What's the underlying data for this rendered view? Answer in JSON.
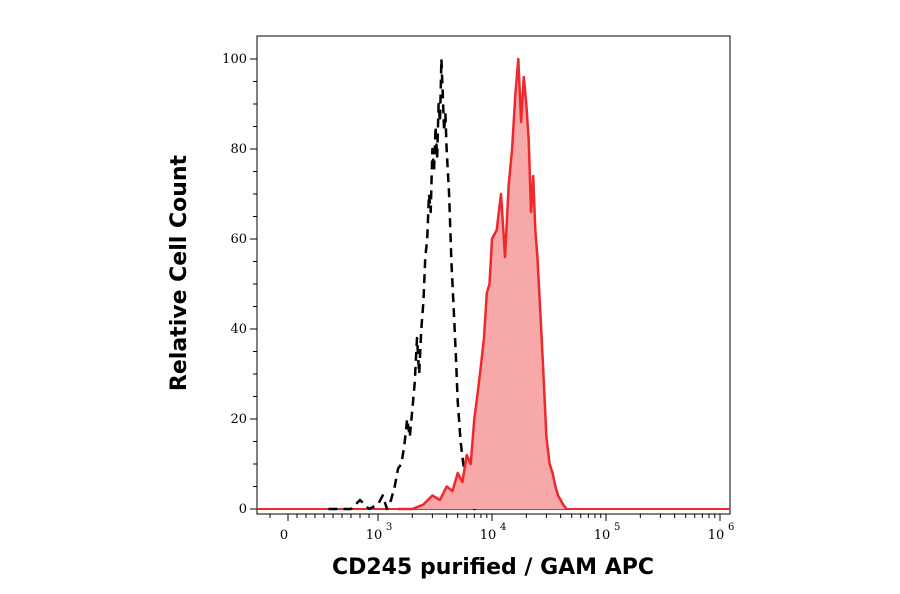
{
  "chart_data": {
    "type": "area",
    "xlabel": "CD245 purified / GAM APC",
    "ylabel": "Relative Cell Count",
    "x_scale": "biexponential",
    "ylim": [
      0,
      105
    ],
    "x_ticks": [
      {
        "value": 0,
        "base": "0",
        "exp": ""
      },
      {
        "value": 1000,
        "base": "10",
        "exp": "3"
      },
      {
        "value": 10000,
        "base": "10",
        "exp": "4"
      },
      {
        "value": 100000,
        "base": "10",
        "exp": "5"
      },
      {
        "value": 1000000,
        "base": "10",
        "exp": "6"
      }
    ],
    "y_ticks": [
      0,
      20,
      40,
      60,
      80,
      100
    ],
    "grid": false,
    "legend": "none",
    "colors": {
      "stained_line": "#f0282d",
      "stained_fill": "#f7a8a8",
      "control_line": "#000000"
    },
    "series": [
      {
        "style": "dashed-black",
        "x": [
          450,
          600,
          700,
          800,
          900,
          1000,
          1100,
          1200,
          1300,
          1400,
          1500,
          1600,
          1700,
          1800,
          1900,
          2000,
          2100,
          2200,
          2300,
          2400,
          2500,
          2600,
          2700,
          2800,
          2900,
          3000,
          3100,
          3200,
          3300,
          3400,
          3500,
          3600,
          3700,
          3800,
          3900,
          4000,
          4200,
          4400,
          4600,
          4800,
          5000,
          5300,
          5600,
          6000,
          6500,
          7000,
          8000
        ],
        "values": [
          0,
          0,
          0,
          2,
          0,
          1,
          3,
          0,
          2,
          5,
          9,
          10,
          14,
          20,
          16,
          22,
          28,
          38,
          30,
          40,
          46,
          56,
          60,
          70,
          66,
          80,
          75,
          85,
          78,
          90,
          86,
          100,
          92,
          84,
          88,
          80,
          70,
          55,
          45,
          35,
          24,
          15,
          10,
          5,
          2,
          0,
          0
        ]
      },
      {
        "style": "filled-red",
        "x": [
          1500,
          2000,
          2500,
          3000,
          3500,
          4000,
          4500,
          5000,
          5500,
          6000,
          6500,
          7000,
          7500,
          8000,
          8500,
          9000,
          9500,
          10000,
          11000,
          12000,
          13000,
          14000,
          15000,
          16000,
          17000,
          18000,
          19000,
          20000,
          21000,
          22000,
          23000,
          24000,
          25000,
          26000,
          27000,
          28000,
          29000,
          30000,
          32000,
          34000,
          36000,
          38000,
          40000,
          42000,
          45000
        ],
        "values": [
          0,
          0,
          1,
          3,
          2,
          5,
          4,
          8,
          6,
          12,
          10,
          20,
          26,
          32,
          38,
          48,
          50,
          60,
          62,
          70,
          56,
          72,
          80,
          92,
          100,
          86,
          96,
          90,
          82,
          66,
          74,
          62,
          56,
          48,
          40,
          32,
          24,
          16,
          10,
          8,
          5,
          3,
          2,
          1,
          0
        ]
      }
    ]
  }
}
